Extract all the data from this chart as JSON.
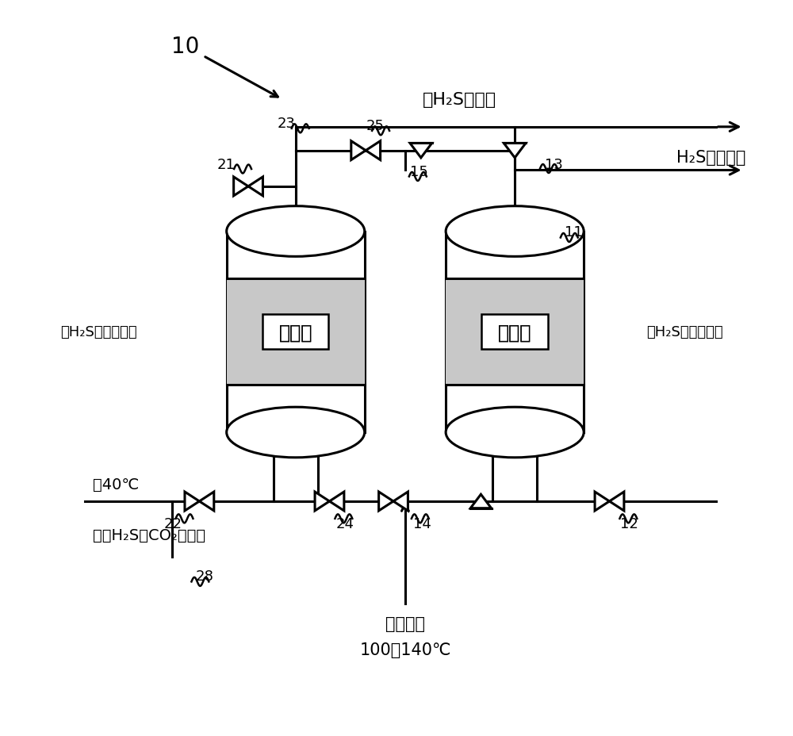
{
  "bg_color": "#ffffff",
  "line_color": "#000000",
  "tank_fill": "#ffffff",
  "adsorbent_fill": "#c8c8c8",
  "label_fill": "#ffffff",
  "text_no_h2s": "无H₂S的气体",
  "text_h2s_recov": "H₂S回收气体",
  "text_left_state": "（H₂S脱附状态）",
  "text_right_state": "（H₂S吸附状态）",
  "text_adsorbent": "吸附剂",
  "text_about40": "约40℃",
  "text_gas_h2s_co2": "含有H₂S、CO₂的气体",
  "text_heated": "加燭气流",
  "text_temp": "100～140℃",
  "num_10": "10",
  "num_11": "11",
  "num_12": "12",
  "num_13": "13",
  "num_14": "14",
  "num_15": "15",
  "num_21": "21",
  "num_22": "22",
  "num_23": "23",
  "num_24": "24",
  "num_25": "25",
  "num_28": "28"
}
